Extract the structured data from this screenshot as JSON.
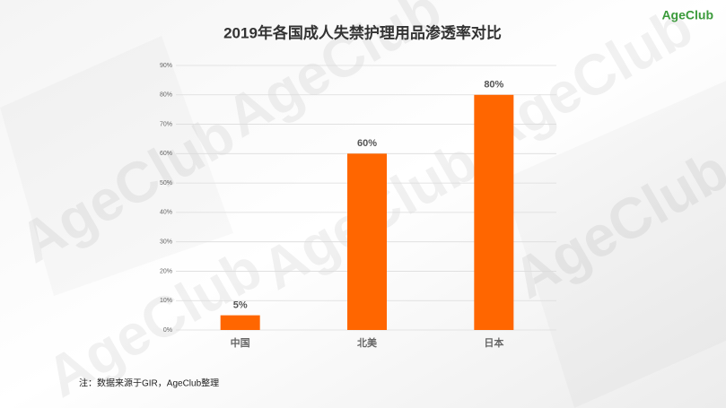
{
  "logo": "AgeClub",
  "watermark": "AgeClub",
  "source_note": "注：数据来源于GIR，AgeClub整理",
  "chart_data": {
    "type": "bar",
    "title": "2019年各国成人失禁护理用品渗透率对比",
    "categories": [
      "中国",
      "北美",
      "日本"
    ],
    "values": [
      5,
      60,
      80
    ],
    "value_labels": [
      "5%",
      "60%",
      "80%"
    ],
    "color": "#ff6600",
    "ylim": [
      0,
      90
    ],
    "yticks": [
      {
        "value": 0,
        "label": "0%"
      },
      {
        "value": 10,
        "label": "10%"
      },
      {
        "value": 20,
        "label": "20%"
      },
      {
        "value": 30,
        "label": "30%"
      },
      {
        "value": 40,
        "label": "40%"
      },
      {
        "value": 50,
        "label": "50%"
      },
      {
        "value": 60,
        "label": "60%"
      },
      {
        "value": 70,
        "label": "70%"
      },
      {
        "value": 80,
        "label": "80%"
      },
      {
        "value": 90,
        "label": "90%"
      }
    ],
    "grid": true
  }
}
